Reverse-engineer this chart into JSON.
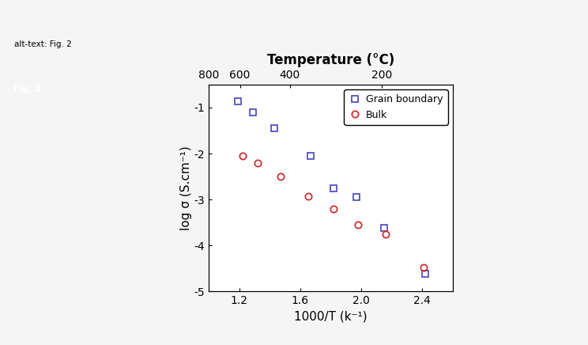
{
  "title_top": "Temperature (°C)",
  "xlabel": "1000/T (k⁻¹)",
  "ylabel": "log σ (S.cm⁻¹)",
  "xlim": [
    1.0,
    2.6
  ],
  "ylim": [
    -5.0,
    -0.5
  ],
  "yticks": [
    -5,
    -4,
    -3,
    -2,
    -1
  ],
  "xticks_bottom": [
    1.2,
    1.6,
    2.0,
    2.4
  ],
  "temp_top_labels": [
    "800",
    "600",
    "400",
    "200"
  ],
  "grain_boundary_x": [
    1.19,
    1.29,
    1.43,
    1.67,
    1.82,
    1.97,
    2.15,
    2.42
  ],
  "grain_boundary_y": [
    -0.87,
    -1.1,
    -1.45,
    -2.05,
    -2.75,
    -2.95,
    -3.62,
    -4.62
  ],
  "bulk_x": [
    1.22,
    1.32,
    1.47,
    1.65,
    1.82,
    1.98,
    2.16,
    2.41
  ],
  "bulk_y": [
    -2.05,
    -2.2,
    -2.5,
    -2.93,
    -3.2,
    -3.55,
    -3.75,
    -4.48
  ],
  "gb_color": "#4444bb",
  "bulk_color": "#cc2222",
  "legend_labels": [
    "Grain boundary",
    "Bulk"
  ],
  "page_bg": "#f5f5f5",
  "plot_bg": "#ffffff",
  "alt_text": "alt-text: Fig. 2",
  "fig_label": "Fig. 2",
  "alt_box_color": "#e8e8e8",
  "fig_box_color": "#555555"
}
